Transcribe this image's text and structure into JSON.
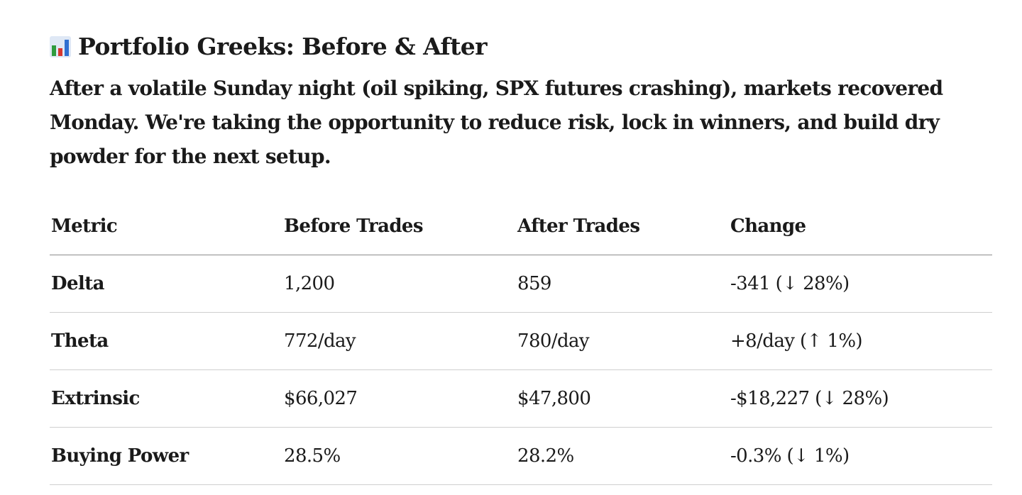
{
  "header": {
    "icon": "bar-chart-icon",
    "title": "Portfolio Greeks: Before & After"
  },
  "intro": "After a volatile Sunday night (oil spiking, SPX futures crashing), markets recovered Monday. We're taking the opportunity to reduce risk, lock in winners, and build dry powder for the next setup.",
  "table": {
    "headers": [
      "Metric",
      "Before Trades",
      "After Trades",
      "Change"
    ],
    "rows": [
      {
        "metric": "Delta",
        "before": "1,200",
        "after": "859",
        "change": "-341 (↓ 28%)"
      },
      {
        "metric": "Theta",
        "before": "772/day",
        "after": "780/day",
        "change": "+8/day (↑ 1%)"
      },
      {
        "metric": "Extrinsic",
        "before": "$66,027",
        "after": "$47,800",
        "change": "-$18,227 (↓ 28%)"
      },
      {
        "metric": "Buying Power",
        "before": "28.5%",
        "after": "28.2%",
        "change": "-0.3% (↓ 1%)"
      }
    ]
  },
  "colors": {
    "icon_background": "#dfe8f5",
    "icon_bar_green": "#2e9b3e",
    "icon_bar_red": "#d6362f",
    "icon_bar_blue": "#2f6fd1",
    "header_rule": "#8c8c8c",
    "row_rule": "#cfcfcf"
  }
}
